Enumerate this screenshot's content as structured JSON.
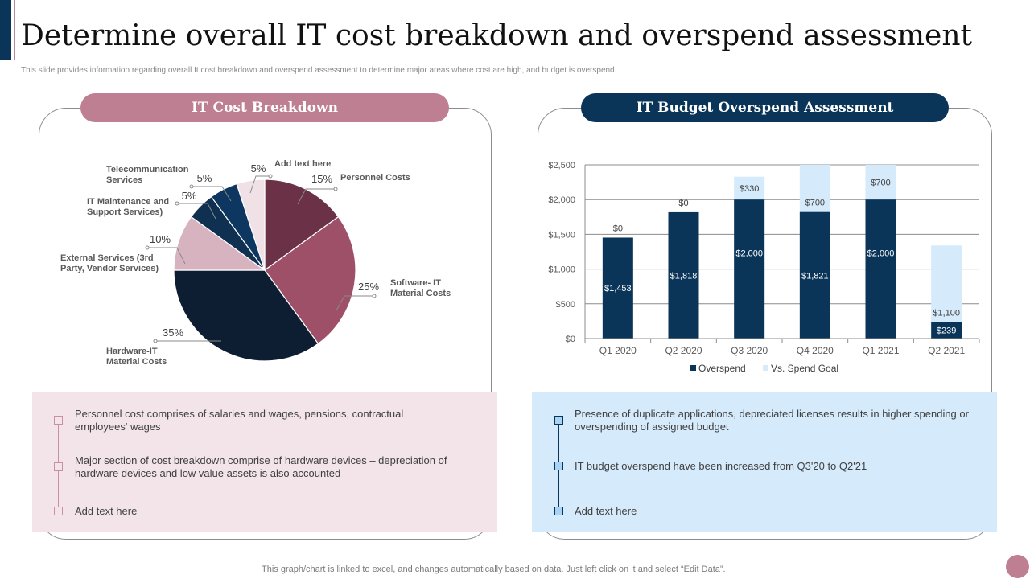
{
  "header": {
    "title": "Determine overall IT cost breakdown and overspend assessment",
    "subtitle": "This slide provides information regarding overall It  cost breakdown and overspend assessment to determine  major areas where cost are high, and budget is overspend."
  },
  "left_panel": {
    "heading": "IT Cost Breakdown",
    "notes": [
      "Personnel cost comprises of salaries and wages, pensions, contractual employees' wages",
      "Major section of cost breakdown  comprise of hardware  devices – depreciation  of hardware  devices  and low value  assets is also accounted",
      "Add text here"
    ]
  },
  "right_panel": {
    "heading": "IT Budget Overspend Assessment",
    "notes": [
      "Presence of duplicate applications, depreciated  licenses results in higher spending or overspending  of assigned budget",
      "IT budget overspend  have  been increased from  Q3'20 to Q2'21",
      "Add text here"
    ]
  },
  "footer": {
    "note": "This graph/chart is linked to excel,  and changes automatically based on data. Just left click on it and select “Edit Data”."
  },
  "colors": {
    "navy": "#0b3558",
    "rose": "#bf7f92",
    "light_blue": "#d5eafa",
    "light_pink": "#f2e4e9"
  },
  "chart_data": [
    {
      "type": "pie",
      "title": "IT Cost Breakdown",
      "start": "top, clockwise",
      "slices": [
        {
          "label": "Personnel Costs",
          "value": 15,
          "display": "15%",
          "color": "#6b3146"
        },
        {
          "label": "Software- IT Material Costs",
          "value": 25,
          "display": "25%",
          "color": "#9e5068"
        },
        {
          "label": "Hardware-IT Material Costs",
          "value": 35,
          "display": "35%",
          "color": "#0d1e33"
        },
        {
          "label": "External Services (3rd Party, Vendor Services)",
          "value": 10,
          "display": "10%",
          "color": "#d6b3bf"
        },
        {
          "label": "IT Maintenance and Support Services)",
          "value": 5,
          "display": "5%",
          "color": "#0f3050"
        },
        {
          "label": "Telecommunication Services",
          "value": 5,
          "display": "5%",
          "color": "#0d3760"
        },
        {
          "label": "Add text here",
          "value": 5,
          "display": "5%",
          "color": "#f0e1e7"
        }
      ]
    },
    {
      "type": "bar",
      "stacked": true,
      "title": "IT Budget Overspend Assessment",
      "categories": [
        "Q1 2020",
        "Q2 2020",
        "Q3 2020",
        "Q4 2020",
        "Q1 2021",
        "Q2 2021"
      ],
      "series": [
        {
          "name": "Overspend",
          "color": "#0b3558",
          "values": [
            1453,
            1818,
            2000,
            1821,
            2000,
            239
          ],
          "labels": [
            "$1,453",
            "$1,818",
            "$2,000",
            "$1,821",
            "$2,000",
            "$239"
          ]
        },
        {
          "name": "Vs. Spend Goal",
          "color": "#d5eafa",
          "values": [
            0,
            0,
            330,
            700,
            700,
            1100
          ],
          "labels": [
            "$0",
            "$0",
            "$330",
            "$700",
            "$700",
            "$1,100"
          ]
        }
      ],
      "ylim": [
        0,
        2500
      ],
      "yticks": [
        0,
        500,
        1000,
        1500,
        2000,
        2500
      ],
      "ytick_labels": [
        "$0",
        "$500",
        "$1,000",
        "$1,500",
        "$2,000",
        "$2,500"
      ],
      "xlabel": "",
      "ylabel": "",
      "grid": true,
      "legend": "bottom"
    }
  ]
}
